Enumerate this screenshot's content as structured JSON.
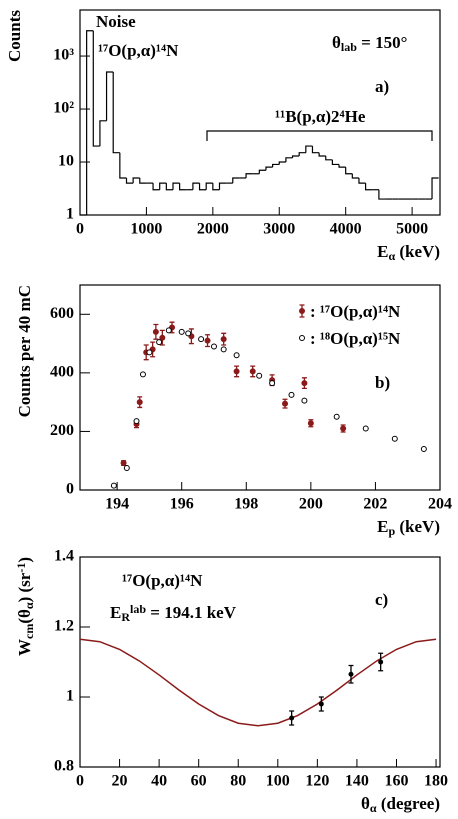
{
  "chart_data": [
    {
      "type": "histogram",
      "y_label": "Counts",
      "x_label": [
        {
          "text": "E"
        },
        {
          "text": "α",
          "pos": "sub"
        },
        {
          "text": " (keV)"
        }
      ],
      "annotations": [
        [
          {
            "text": "Noise"
          }
        ],
        [
          {
            "text": "¹⁷O(p,α)¹⁴N"
          }
        ],
        [
          {
            "text": "θ"
          },
          {
            "text": "lab",
            "pos": "sub"
          },
          {
            "text": " = 150°"
          }
        ],
        [
          {
            "text": "a)"
          }
        ],
        [
          {
            "text": "¹¹B(p,α)2⁴He"
          }
        ]
      ],
      "color": "#000000",
      "bins": [
        0,
        100,
        200,
        300,
        400,
        500,
        600,
        700,
        800,
        900,
        1000,
        1100,
        1200,
        1300,
        1400,
        1500,
        1600,
        1700,
        1800,
        1900,
        2000,
        2100,
        2200,
        2300,
        2400,
        2500,
        2600,
        2700,
        2800,
        2900,
        3000,
        3100,
        3200,
        3300,
        3400,
        3500,
        3600,
        3700,
        3800,
        3900,
        4000,
        4100,
        4200,
        4300,
        4400,
        4500,
        4600,
        4700,
        4800,
        4900,
        5000,
        5100,
        5200,
        5300,
        5400
      ],
      "values": [
        1,
        3000,
        20,
        60,
        500,
        15,
        5,
        4,
        5,
        4,
        4,
        3,
        4,
        3,
        4,
        3,
        3,
        4,
        3,
        4,
        3,
        4,
        4,
        5,
        5,
        6,
        6,
        7,
        8,
        9,
        10,
        12,
        13,
        15,
        20,
        15,
        13,
        11,
        9,
        8,
        6,
        5,
        4,
        3,
        3,
        2,
        2,
        2,
        2,
        2,
        2,
        2,
        2,
        5
      ],
      "log_y": true,
      "xlim": [
        0,
        5420
      ],
      "xticks": [
        0,
        1000,
        2000,
        3000,
        4000,
        5000
      ],
      "ylim": [
        1,
        7400
      ],
      "yticks": [
        1,
        10,
        {
          "value": 100,
          "label": "10²"
        },
        {
          "value": 1000,
          "label": "10³"
        }
      ]
    },
    {
      "type": "scatter",
      "y_label": "Counts per 40 mC",
      "x_label": [
        {
          "text": "E"
        },
        {
          "text": "p",
          "pos": "sub"
        },
        {
          "text": " (keV)"
        }
      ],
      "annotations": [
        [
          {
            "text": "b)"
          }
        ]
      ],
      "log_y": false,
      "xlim": [
        192.85,
        204
      ],
      "xticks": [
        194,
        196,
        198,
        200,
        202,
        204
      ],
      "ylim": [
        0,
        700
      ],
      "yticks": [
        0,
        200,
        400,
        600
      ],
      "series": [
        {
          "name": ": ¹⁷O(p,α)¹⁴N",
          "color": "#8b1a1a",
          "marker": "filled",
          "x": [
            194.2,
            194.6,
            194.7,
            194.9,
            195.1,
            195.2,
            195.4,
            195.7,
            196.3,
            196.8,
            197.3,
            197.7,
            198.2,
            198.8,
            199.2,
            199.8,
            200.0,
            201.0
          ],
          "values": [
            92,
            225,
            300,
            470,
            480,
            540,
            520,
            555,
            525,
            510,
            515,
            405,
            405,
            375,
            295,
            365,
            228,
            210
          ],
          "errors": [
            8,
            12,
            18,
            25,
            25,
            25,
            25,
            18,
            25,
            20,
            20,
            18,
            18,
            18,
            15,
            18,
            12,
            12
          ]
        },
        {
          "name": ": ¹⁸O(p,α)¹⁵N",
          "color": "#000000",
          "marker": "open",
          "x": [
            193.9,
            194.3,
            194.6,
            194.8,
            195.0,
            195.3,
            195.6,
            196.0,
            196.2,
            196.6,
            197.0,
            197.3,
            197.7,
            198.4,
            198.8,
            199.4,
            199.8,
            200.8,
            201.7,
            202.6,
            203.5
          ],
          "values": [
            15,
            75,
            235,
            395,
            470,
            505,
            545,
            540,
            535,
            515,
            490,
            480,
            460,
            390,
            365,
            325,
            305,
            250,
            210,
            175,
            140
          ]
        }
      ]
    },
    {
      "type": "line",
      "y_label": [
        {
          "text": "W"
        },
        {
          "text": "cm",
          "pos": "sub"
        },
        {
          "text": "(θ"
        },
        {
          "text": "α",
          "pos": "sub"
        },
        {
          "text": ") (sr"
        },
        {
          "text": "-1",
          "pos": "sup"
        },
        {
          "text": ")"
        }
      ],
      "x_label": [
        {
          "text": "θ"
        },
        {
          "text": "α",
          "pos": "sub"
        },
        {
          "text": " (degree)"
        }
      ],
      "annotations": [
        [
          {
            "text": "¹⁷O(p,α)¹⁴N"
          }
        ],
        [
          {
            "text": "E"
          },
          {
            "text": "R",
            "pos": "sub"
          },
          {
            "text": "lab",
            "pos": "sup"
          },
          {
            "text": " = 194.1 keV"
          }
        ],
        [
          {
            "text": "c)"
          }
        ]
      ],
      "log_y": false,
      "xlim": [
        0,
        182
      ],
      "xticks": [
        0,
        20,
        40,
        60,
        80,
        100,
        120,
        140,
        160,
        180
      ],
      "ylim": [
        0.8,
        1.4
      ],
      "yticks": [
        0.8,
        1,
        1.2,
        1.4
      ],
      "series": [
        {
          "mode": "line",
          "color": "#8b1a1a",
          "x": [
            0,
            10,
            20,
            30,
            40,
            50,
            60,
            70,
            80,
            90,
            100,
            110,
            120,
            130,
            140,
            150,
            160,
            170,
            180
          ],
          "values": [
            1.165,
            1.158,
            1.136,
            1.103,
            1.063,
            1.02,
            0.98,
            0.947,
            0.925,
            0.918,
            0.925,
            0.947,
            0.98,
            1.02,
            1.063,
            1.103,
            1.136,
            1.158,
            1.165
          ]
        },
        {
          "mode": "points",
          "color": "#000000",
          "x": [
            107,
            122,
            137,
            152
          ],
          "values": [
            0.94,
            0.98,
            1.065,
            1.1
          ],
          "errors": [
            0.02,
            0.02,
            0.025,
            0.025
          ]
        }
      ]
    }
  ]
}
